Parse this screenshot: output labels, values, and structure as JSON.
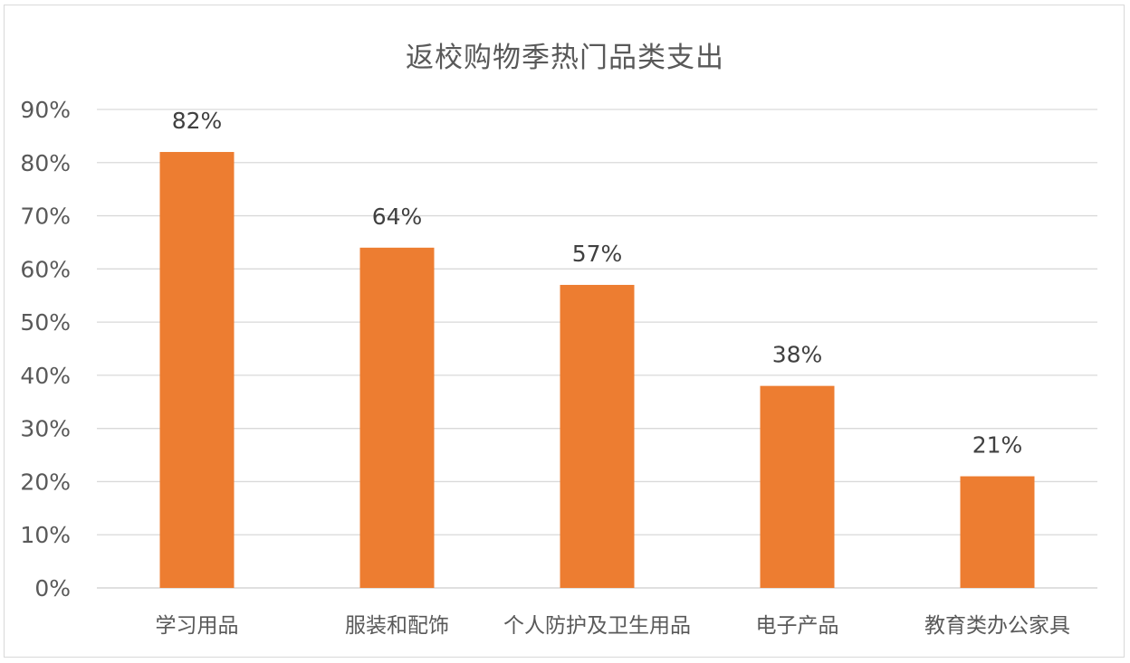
{
  "chart_data": {
    "type": "bar",
    "title": "返校购物季热门品类支出",
    "categories": [
      "学习用品",
      "服装和配饰",
      "个人防护及卫生用品",
      "电子产品",
      "教育类办公家具"
    ],
    "values": [
      82,
      64,
      57,
      38,
      21
    ],
    "data_labels": [
      "82%",
      "64%",
      "57%",
      "38%",
      "21%"
    ],
    "ylim": [
      0,
      90
    ],
    "y_ticks": [
      0,
      10,
      20,
      30,
      40,
      50,
      60,
      70,
      80,
      90
    ],
    "y_tick_labels": [
      "0%",
      "10%",
      "20%",
      "30%",
      "40%",
      "50%",
      "60%",
      "70%",
      "80%",
      "90%"
    ],
    "xlabel": "",
    "ylabel": "",
    "grid": true,
    "legend": "none",
    "colors": {
      "bar": "#ED7D31",
      "grid": "#d9d9d9",
      "text": "#595959",
      "data_label": "#404040"
    }
  }
}
